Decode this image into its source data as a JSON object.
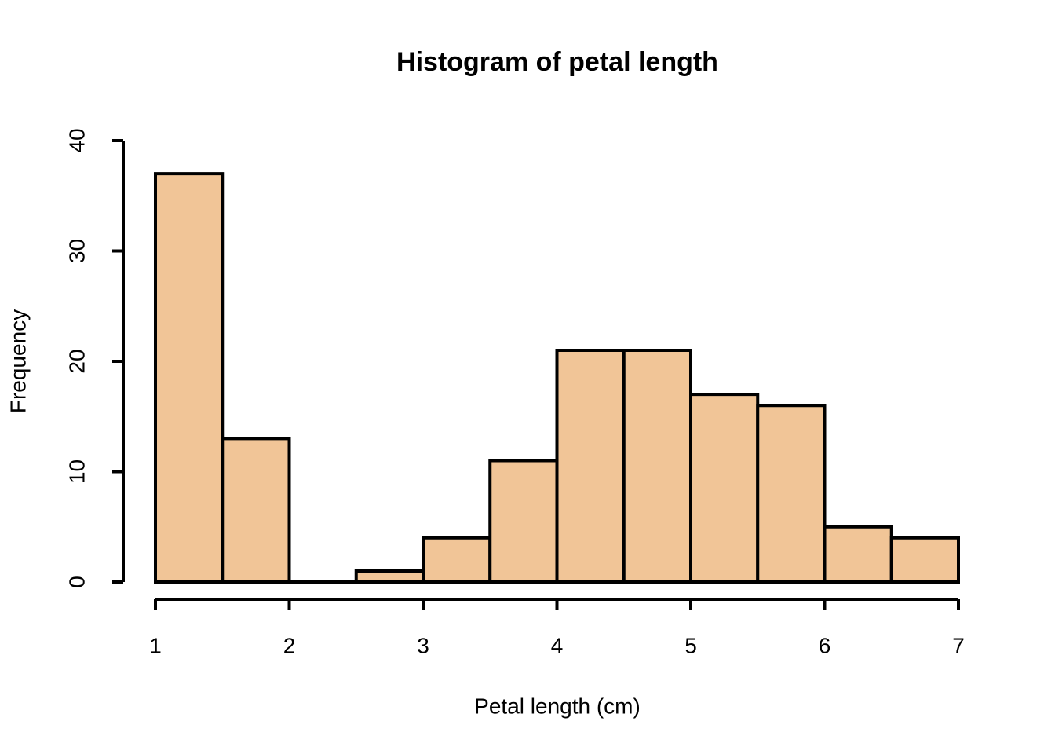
{
  "chart_data": {
    "type": "histogram",
    "title": "Histogram of petal length",
    "x_label": "Petal length (cm)",
    "y_label": "Frequency",
    "bins": [
      1,
      1.5,
      2,
      2.5,
      3,
      3.5,
      4,
      4.5,
      5,
      5.5,
      6,
      6.5,
      7
    ],
    "values": [
      37,
      13,
      0,
      1,
      4,
      11,
      21,
      21,
      17,
      16,
      5,
      4
    ],
    "color": "#f1c597",
    "xlim": [
      1,
      7
    ],
    "xticks": [
      1,
      2,
      3,
      4,
      5,
      6,
      7
    ],
    "ylim": [
      0,
      40
    ],
    "yticks": [
      0,
      10,
      20,
      30,
      40
    ]
  }
}
